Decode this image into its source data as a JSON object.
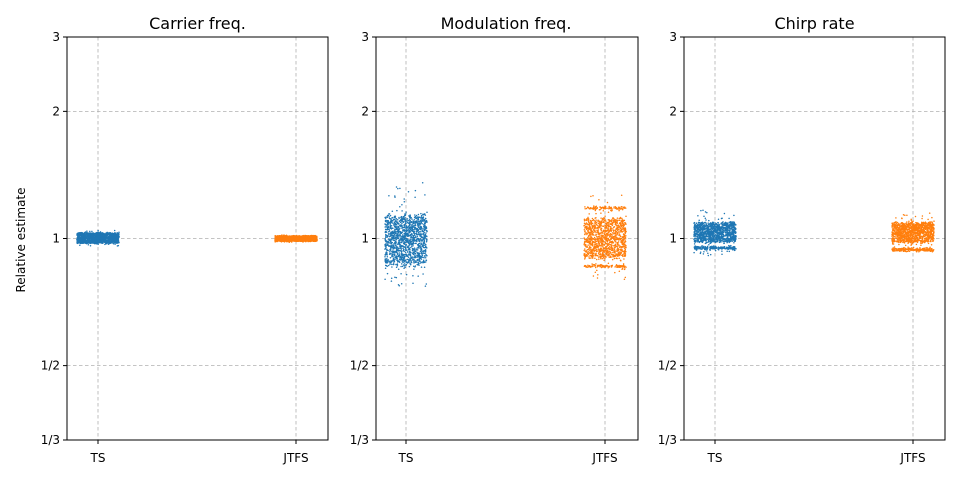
{
  "figure": {
    "ylabel": "Relative estimate"
  },
  "chart_data": [
    {
      "type": "scatter",
      "title": "Carrier freq.",
      "categories": [
        "TS",
        "JTFS"
      ],
      "ylabel": "Relative estimate",
      "yscale": "log2",
      "ylim": [
        0.3333,
        3
      ],
      "yticks": [
        0.3333,
        0.5,
        1,
        2,
        3
      ],
      "ytick_labels": [
        "1/3",
        "1/2",
        "1",
        "2",
        "3"
      ],
      "grid": true,
      "series": [
        {
          "category": "TS",
          "color": "#1f77b4",
          "center": 1.0,
          "core_range": [
            0.975,
            1.03
          ],
          "outlier_range": [
            0.96,
            1.045
          ],
          "bands": []
        },
        {
          "category": "JTFS",
          "color": "#ff7f0e",
          "center": 1.0,
          "core_range": [
            0.985,
            1.015
          ],
          "outlier_range": [
            0.98,
            1.02
          ],
          "bands": []
        }
      ]
    },
    {
      "type": "scatter",
      "title": "Modulation freq.",
      "categories": [
        "TS",
        "JTFS"
      ],
      "ylabel": "",
      "yscale": "log2",
      "ylim": [
        0.3333,
        3
      ],
      "yticks": [
        0.3333,
        0.5,
        1,
        2,
        3
      ],
      "ytick_labels": [
        "1/3",
        "1/2",
        "1",
        "2",
        "3"
      ],
      "grid": true,
      "series": [
        {
          "category": "TS",
          "color": "#1f77b4",
          "center": 1.0,
          "core_range": [
            0.87,
            1.13
          ],
          "outlier_range": [
            0.77,
            1.36
          ],
          "bands": []
        },
        {
          "category": "JTFS",
          "color": "#ff7f0e",
          "center": 1.0,
          "core_range": [
            0.9,
            1.11
          ],
          "outlier_range": [
            0.8,
            1.27
          ],
          "bands": [
            0.86,
            1.18
          ]
        }
      ]
    },
    {
      "type": "scatter",
      "title": "Chirp rate",
      "categories": [
        "TS",
        "JTFS"
      ],
      "ylabel": "",
      "yscale": "log2",
      "ylim": [
        0.3333,
        3
      ],
      "yticks": [
        0.3333,
        0.5,
        1,
        2,
        3
      ],
      "ytick_labels": [
        "1/3",
        "1/2",
        "1",
        "2",
        "3"
      ],
      "grid": true,
      "series": [
        {
          "category": "TS",
          "color": "#1f77b4",
          "center": 1.0,
          "core_range": [
            0.98,
            1.09
          ],
          "outlier_range": [
            0.91,
            1.17
          ],
          "bands": [
            0.95
          ]
        },
        {
          "category": "JTFS",
          "color": "#ff7f0e",
          "center": 1.0,
          "core_range": [
            0.98,
            1.09
          ],
          "outlier_range": [
            0.93,
            1.15
          ],
          "bands": [
            0.94
          ]
        }
      ]
    }
  ]
}
